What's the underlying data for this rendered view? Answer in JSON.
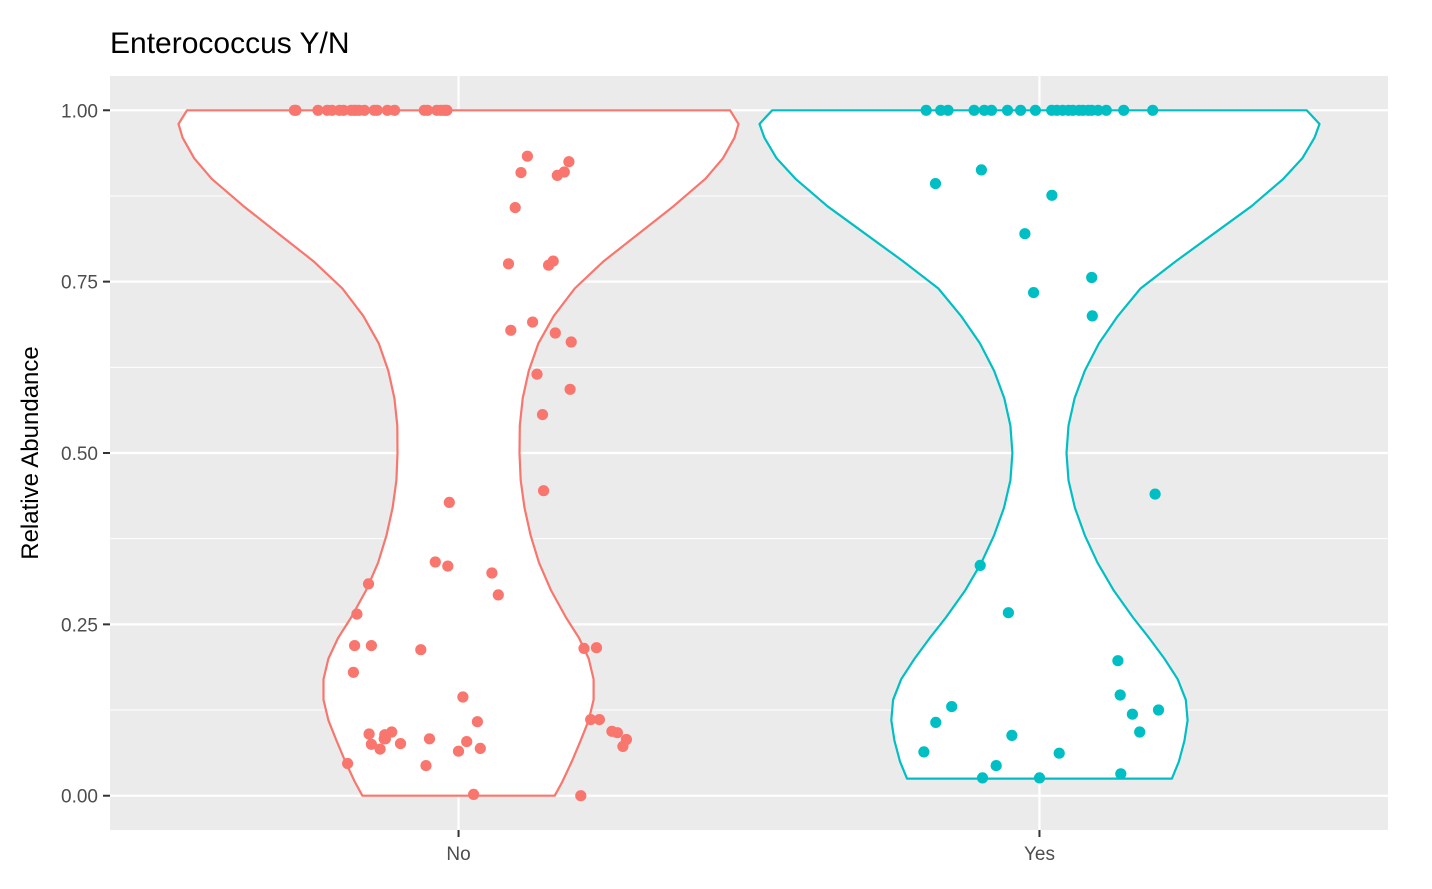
{
  "chart_data": {
    "type": "violin",
    "title": "Enterococcus Y/N",
    "xlabel": "",
    "ylabel": "Relative Abundance",
    "ylim": [
      -0.05,
      1.05
    ],
    "y_ticks": [
      0.0,
      0.25,
      0.5,
      0.75,
      1.0
    ],
    "y_tick_labels": [
      "0.00",
      "0.25",
      "0.50",
      "0.75",
      "1.00"
    ],
    "categories": [
      "No",
      "Yes"
    ],
    "grid": true,
    "legend": "none",
    "colors": {
      "No": "#F8766D",
      "Yes": "#00BFC4",
      "panel": "#EBEBEB",
      "grid": "#FFFFFF"
    },
    "violins": [
      {
        "category": "No",
        "ymin": 0.0,
        "ymax": 1.0,
        "profile": [
          [
            0.0,
            0.331
          ],
          [
            0.02,
            0.357
          ],
          [
            0.05,
            0.39
          ],
          [
            0.08,
            0.42
          ],
          [
            0.11,
            0.448
          ],
          [
            0.14,
            0.465
          ],
          [
            0.17,
            0.465
          ],
          [
            0.2,
            0.448
          ],
          [
            0.23,
            0.415
          ],
          [
            0.26,
            0.37
          ],
          [
            0.3,
            0.318
          ],
          [
            0.34,
            0.277
          ],
          [
            0.38,
            0.248
          ],
          [
            0.42,
            0.227
          ],
          [
            0.46,
            0.214
          ],
          [
            0.5,
            0.21
          ],
          [
            0.54,
            0.211
          ],
          [
            0.58,
            0.221
          ],
          [
            0.62,
            0.242
          ],
          [
            0.66,
            0.275
          ],
          [
            0.7,
            0.328
          ],
          [
            0.74,
            0.4
          ],
          [
            0.78,
            0.5
          ],
          [
            0.82,
            0.62
          ],
          [
            0.86,
            0.74
          ],
          [
            0.9,
            0.85
          ],
          [
            0.93,
            0.91
          ],
          [
            0.96,
            0.95
          ],
          [
            0.98,
            0.964
          ],
          [
            1.0,
            0.935
          ]
        ]
      },
      {
        "category": "Yes",
        "ymin": 0.025,
        "ymax": 1.0,
        "profile": [
          [
            0.025,
            0.456
          ],
          [
            0.05,
            0.48
          ],
          [
            0.08,
            0.499
          ],
          [
            0.11,
            0.51
          ],
          [
            0.14,
            0.504
          ],
          [
            0.17,
            0.476
          ],
          [
            0.2,
            0.43
          ],
          [
            0.23,
            0.378
          ],
          [
            0.26,
            0.322
          ],
          [
            0.3,
            0.255
          ],
          [
            0.34,
            0.2
          ],
          [
            0.38,
            0.156
          ],
          [
            0.42,
            0.122
          ],
          [
            0.46,
            0.1
          ],
          [
            0.5,
            0.093
          ],
          [
            0.54,
            0.1
          ],
          [
            0.58,
            0.121
          ],
          [
            0.62,
            0.156
          ],
          [
            0.66,
            0.205
          ],
          [
            0.7,
            0.27
          ],
          [
            0.74,
            0.348
          ],
          [
            0.78,
            0.47
          ],
          [
            0.82,
            0.6
          ],
          [
            0.86,
            0.73
          ],
          [
            0.9,
            0.84
          ],
          [
            0.93,
            0.905
          ],
          [
            0.96,
            0.947
          ],
          [
            0.98,
            0.964
          ],
          [
            1.0,
            0.92
          ]
        ]
      }
    ],
    "points": [
      {
        "category": "No",
        "jitter": [
          -0.382,
          -0.358,
          -0.362,
          -0.3,
          -0.31,
          -0.35,
          -0.3,
          -0.27,
          -0.308,
          -0.256,
          -0.254,
          -0.252,
          -0.23,
          -0.2,
          -0.13,
          -0.1,
          -0.112,
          -0.08,
          -0.037,
          -0.032,
          -0.0,
          0.015,
          0.028,
          0.052,
          0.065,
          0.075,
          0.115,
          0.137,
          0.172,
          0.18,
          0.195,
          0.215,
          0.237,
          0.255,
          0.27,
          0.289,
          0.293,
          0.31,
          0.326,
          0.333,
          0.34,
          0.364,
          0.38,
          0.384,
          0.388,
          0.421,
          0.432,
          0.455,
          0.475,
          0.485,
          0.528,
          0.547,
          0.566,
          0.578,
          -0.118,
          -0.107,
          -0.062,
          -0.052,
          -0.04,
          -0.075,
          -0.045,
          -0.22,
          -0.245,
          -0.28,
          -0.29,
          -0.324,
          -0.342,
          -0.352,
          -0.36,
          -0.37,
          -0.396,
          -0.41,
          -0.436,
          -0.452,
          -0.484,
          -0.56,
          -0.565
        ],
        "values": [
          0.047,
          0.219,
          0.18,
          0.219,
          0.309,
          0.265,
          0.075,
          0.068,
          0.09,
          0.083,
          0.089,
          0.083,
          0.093,
          0.076,
          0.213,
          0.083,
          0.044,
          0.341,
          0.335,
          0.428,
          0.065,
          0.144,
          0.079,
          0.002,
          0.108,
          0.069,
          0.325,
          0.293,
          0.776,
          0.679,
          0.858,
          0.909,
          0.933,
          0.691,
          0.615,
          0.556,
          0.445,
          0.774,
          0.78,
          0.675,
          0.905,
          0.91,
          0.925,
          0.593,
          0.662,
          0.0,
          0.215,
          0.111,
          0.216,
          0.111,
          0.094,
          0.092,
          0.072,
          0.082,
          1.0,
          1.0,
          1.0,
          1.0,
          1.0,
          1.0,
          1.0,
          1.0,
          1.0,
          1.0,
          1.0,
          1.0,
          1.0,
          1.0,
          1.0,
          1.0,
          1.0,
          1.0,
          1.0,
          1.0,
          1.0,
          1.0,
          1.0
        ]
      },
      {
        "category": "Yes",
        "jitter": [
          -0.398,
          -0.358,
          -0.357,
          -0.302,
          -0.2,
          -0.204,
          -0.196,
          -0.149,
          -0.107,
          -0.095,
          -0.05,
          -0.02,
          0.0,
          0.043,
          0.068,
          0.18,
          0.182,
          0.27,
          0.278,
          0.28,
          0.32,
          0.345,
          0.398,
          0.41,
          -0.39,
          -0.34,
          -0.315,
          -0.225,
          -0.19,
          -0.165,
          -0.11,
          -0.065,
          -0.014,
          0.042,
          0.06,
          0.08,
          0.1,
          0.115,
          0.137,
          0.15,
          0.168,
          0.18,
          0.202,
          0.23,
          0.29,
          0.39
        ],
        "values": [
          0.064,
          0.893,
          0.107,
          0.13,
          0.913,
          0.336,
          0.026,
          0.044,
          0.267,
          0.088,
          0.82,
          0.734,
          0.026,
          0.876,
          0.062,
          0.756,
          0.7,
          0.197,
          0.147,
          0.032,
          0.119,
          0.093,
          0.44,
          0.125,
          1.0,
          1.0,
          1.0,
          1.0,
          1.0,
          1.0,
          1.0,
          1.0,
          1.0,
          1.0,
          1.0,
          1.0,
          1.0,
          1.0,
          1.0,
          1.0,
          1.0,
          1.0,
          1.0,
          1.0,
          1.0,
          1.0
        ]
      }
    ]
  }
}
